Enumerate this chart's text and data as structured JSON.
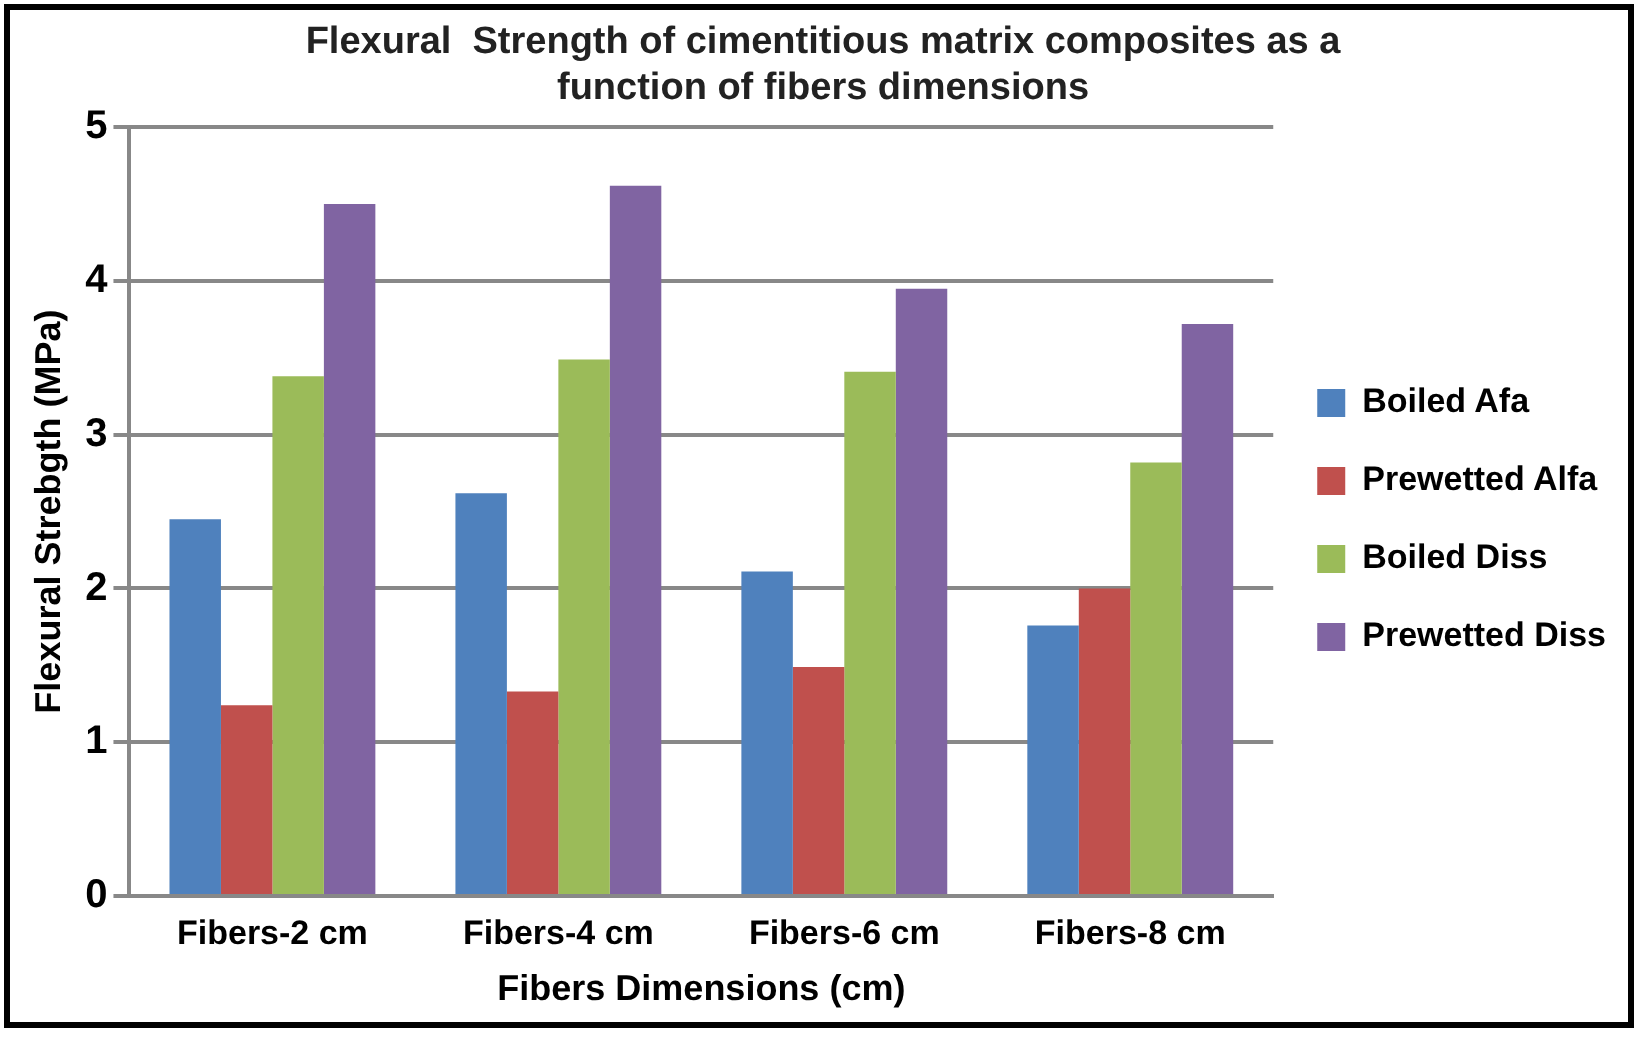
{
  "chart_data": {
    "type": "bar",
    "title": [
      "Flexural  Strength of cimentitious matrix composites as a",
      "function of fibers dimensions"
    ],
    "xlabel": "Fibers Dimensions (cm)",
    "ylabel": "Flexural Strebgth (MPa)",
    "categories": [
      "Fibers-2 cm",
      "Fibers-4 cm",
      "Fibers-6 cm",
      "Fibers-8 cm"
    ],
    "series": [
      {
        "name": "Boiled Afa",
        "color": "#4f81bd",
        "values": [
          2.45,
          2.62,
          2.11,
          1.76
        ]
      },
      {
        "name": "Prewetted Alfa",
        "color": "#c0504d",
        "values": [
          1.24,
          1.33,
          1.49,
          2.0
        ]
      },
      {
        "name": "Boiled Diss",
        "color": "#9bbb59",
        "values": [
          3.38,
          3.49,
          3.41,
          2.82
        ]
      },
      {
        "name": "Prewetted Diss",
        "color": "#8064a2",
        "values": [
          4.5,
          4.62,
          3.95,
          3.72
        ]
      }
    ],
    "ylim": [
      0,
      5
    ],
    "yticks": [
      0,
      1,
      2,
      3,
      4,
      5
    ],
    "grid": "y",
    "legend": "right"
  }
}
